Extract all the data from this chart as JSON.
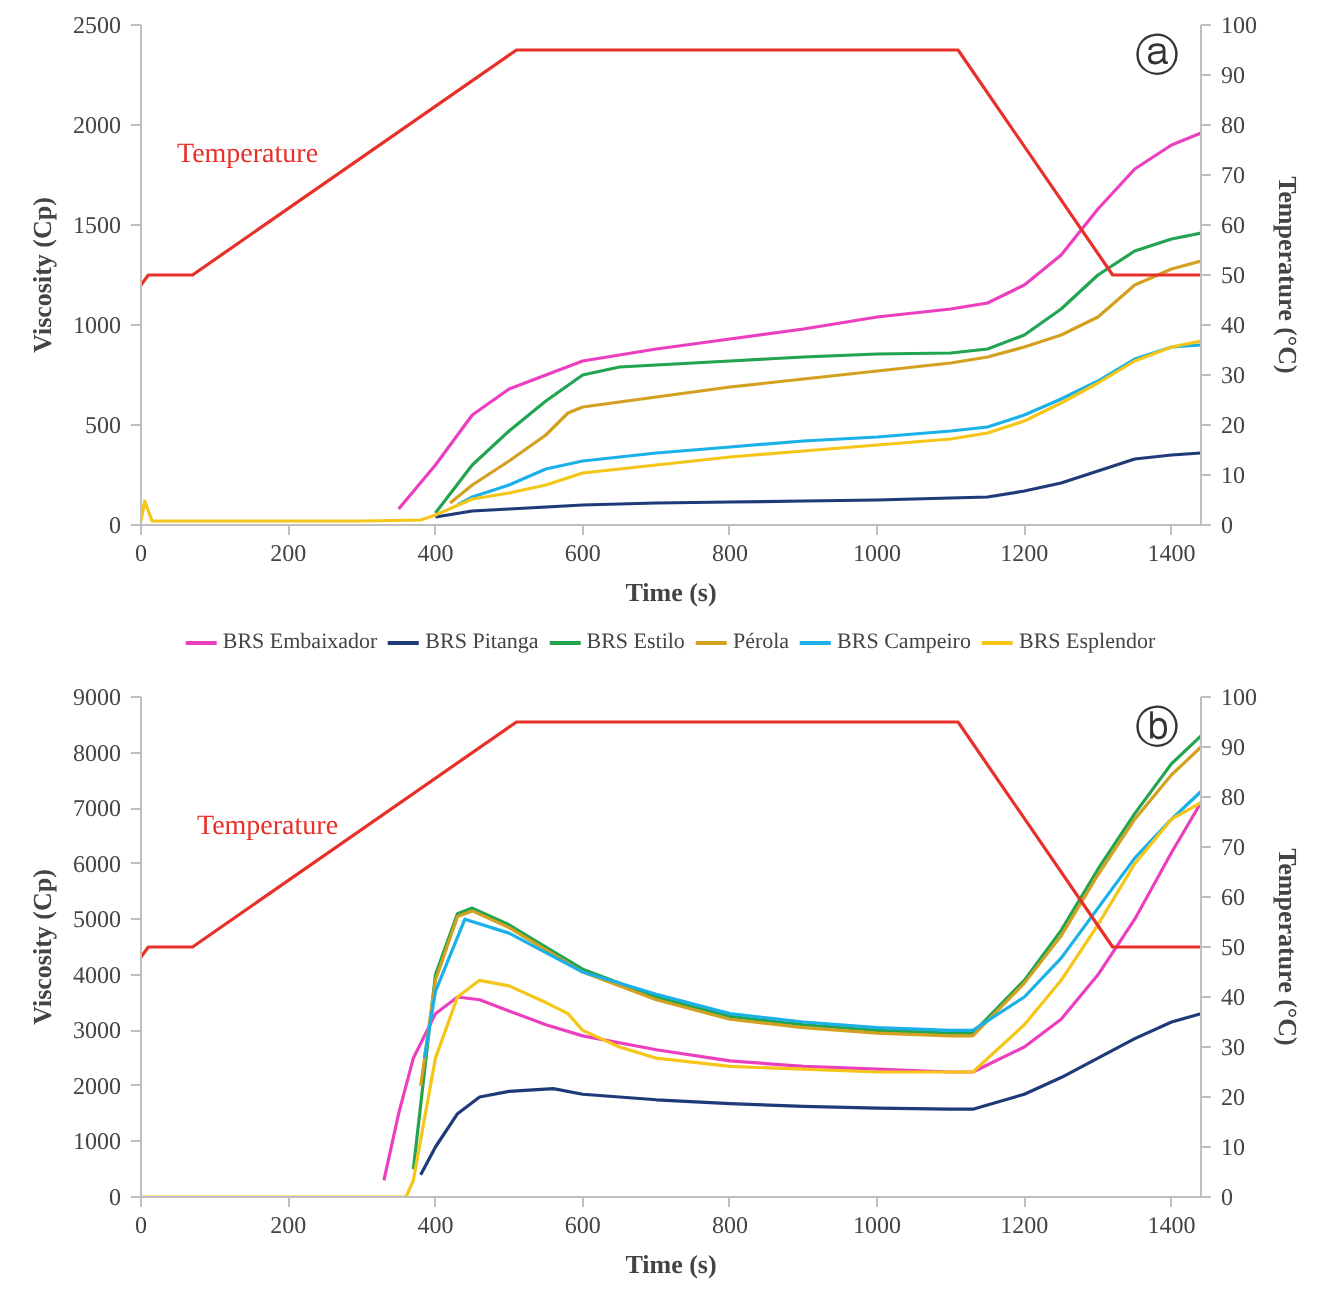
{
  "chart_data": [
    {
      "type": "line",
      "xlabel": "Time (s)",
      "ylabel": "Viscosity (Cp)",
      "y2label": "Temperature (°C)",
      "xlim": [
        0,
        1440
      ],
      "ylim": [
        0,
        2500
      ],
      "y2lim": [
        0,
        100
      ],
      "xticks": [
        0,
        200,
        400,
        600,
        800,
        1000,
        1200,
        1400
      ],
      "yticks": [
        0,
        500,
        1000,
        1500,
        2000,
        2500
      ],
      "y2ticks": [
        0,
        10,
        20,
        30,
        40,
        50,
        60,
        70,
        80,
        90,
        100
      ],
      "grid": false,
      "legend": "bottom",
      "line_style": "solid",
      "marker": "none",
      "annotations": [
        "Temperature",
        "ⓐ"
      ],
      "series": [
        {
          "name": "BRS Embaixador",
          "color": "#ec3fc0",
          "x": [
            350,
            400,
            450,
            500,
            550,
            600,
            700,
            800,
            900,
            1000,
            1100,
            1150,
            1200,
            1250,
            1300,
            1350,
            1400,
            1440
          ],
          "values": [
            80,
            300,
            550,
            680,
            750,
            820,
            880,
            930,
            980,
            1040,
            1080,
            1110,
            1200,
            1350,
            1580,
            1780,
            1900,
            1960
          ]
        },
        {
          "name": "BRS Pitanga",
          "color": "#1f3a78",
          "x": [
            400,
            450,
            500,
            600,
            700,
            800,
            900,
            1000,
            1100,
            1150,
            1200,
            1250,
            1300,
            1350,
            1400,
            1440
          ],
          "values": [
            40,
            70,
            80,
            100,
            110,
            115,
            120,
            125,
            135,
            140,
            170,
            210,
            270,
            330,
            350,
            360
          ]
        },
        {
          "name": "BRS Estilo",
          "color": "#22a450",
          "x": [
            400,
            450,
            500,
            550,
            600,
            650,
            700,
            800,
            900,
            1000,
            1100,
            1150,
            1200,
            1250,
            1300,
            1350,
            1400,
            1440
          ],
          "values": [
            60,
            300,
            470,
            620,
            750,
            790,
            800,
            820,
            840,
            855,
            860,
            880,
            950,
            1080,
            1250,
            1370,
            1430,
            1460
          ]
        },
        {
          "name": "Pérola",
          "color": "#d4a020",
          "x": [
            420,
            450,
            500,
            550,
            580,
            600,
            700,
            800,
            900,
            1000,
            1100,
            1150,
            1200,
            1250,
            1300,
            1350,
            1400,
            1440
          ],
          "values": [
            110,
            200,
            320,
            450,
            560,
            590,
            640,
            690,
            730,
            770,
            810,
            840,
            890,
            950,
            1040,
            1200,
            1280,
            1320
          ]
        },
        {
          "name": "BRS Campeiro",
          "color": "#1ab0e8",
          "x": [
            430,
            450,
            500,
            550,
            600,
            700,
            800,
            900,
            1000,
            1100,
            1150,
            1200,
            1250,
            1300,
            1350,
            1400,
            1440
          ],
          "values": [
            100,
            140,
            200,
            280,
            320,
            360,
            390,
            420,
            440,
            470,
            490,
            550,
            630,
            720,
            830,
            890,
            900
          ]
        },
        {
          "name": "BRS Esplendor",
          "color": "#f5c518",
          "x": [
            0,
            5,
            15,
            100,
            200,
            300,
            380,
            400,
            450,
            500,
            550,
            600,
            700,
            800,
            900,
            1000,
            1100,
            1150,
            1200,
            1250,
            1300,
            1350,
            1400,
            1440
          ],
          "values": [
            20,
            120,
            20,
            20,
            20,
            20,
            25,
            50,
            130,
            160,
            200,
            260,
            300,
            340,
            370,
            400,
            430,
            460,
            520,
            610,
            710,
            820,
            890,
            920
          ]
        },
        {
          "color": "#e8302a",
          "axis": "y2",
          "x": [
            0,
            10,
            70,
            510,
            1110,
            1320,
            1440
          ],
          "values": [
            48,
            50,
            50,
            95,
            95,
            50,
            50
          ]
        }
      ]
    },
    {
      "type": "line",
      "xlabel": "Time (s)",
      "ylabel": "Viscosity (Cp)",
      "y2label": "Temperature (°C)",
      "xlim": [
        0,
        1440
      ],
      "ylim": [
        0,
        9000
      ],
      "y2lim": [
        0,
        100
      ],
      "xticks": [
        0,
        200,
        400,
        600,
        800,
        1000,
        1200,
        1400
      ],
      "yticks": [
        0,
        1000,
        2000,
        3000,
        4000,
        5000,
        6000,
        7000,
        8000,
        9000
      ],
      "y2ticks": [
        0,
        10,
        20,
        30,
        40,
        50,
        60,
        70,
        80,
        90,
        100
      ],
      "grid": false,
      "legend": false,
      "line_style": "solid",
      "marker": "none",
      "annotations": [
        "Temperature",
        "ⓑ"
      ],
      "series": [
        {
          "color": "#ec3fc0",
          "x": [
            330,
            350,
            370,
            400,
            430,
            460,
            500,
            550,
            600,
            700,
            800,
            900,
            1000,
            1100,
            1130,
            1200,
            1250,
            1300,
            1350,
            1400,
            1440
          ],
          "values": [
            300,
            1500,
            2500,
            3300,
            3600,
            3550,
            3350,
            3100,
            2900,
            2650,
            2450,
            2350,
            2300,
            2250,
            2250,
            2700,
            3200,
            4000,
            5000,
            6200,
            7100
          ]
        },
        {
          "color": "#1f3a78",
          "x": [
            380,
            400,
            430,
            460,
            500,
            560,
            600,
            700,
            800,
            900,
            1000,
            1100,
            1130,
            1200,
            1250,
            1300,
            1350,
            1400,
            1440
          ],
          "values": [
            400,
            900,
            1500,
            1800,
            1900,
            1950,
            1850,
            1750,
            1680,
            1630,
            1600,
            1580,
            1580,
            1850,
            2150,
            2500,
            2850,
            3150,
            3300
          ]
        },
        {
          "color": "#22a450",
          "x": [
            370,
            400,
            430,
            450,
            500,
            550,
            600,
            700,
            800,
            900,
            1000,
            1100,
            1130,
            1200,
            1250,
            1300,
            1350,
            1400,
            1440
          ],
          "values": [
            500,
            4000,
            5100,
            5200,
            4900,
            4500,
            4100,
            3600,
            3250,
            3100,
            3000,
            2950,
            2950,
            3900,
            4800,
            5900,
            6900,
            7800,
            8300
          ]
        },
        {
          "color": "#d4a020",
          "x": [
            380,
            400,
            430,
            450,
            500,
            550,
            600,
            700,
            800,
            900,
            1000,
            1100,
            1130,
            1200,
            1250,
            1300,
            1350,
            1400,
            1440
          ],
          "values": [
            2000,
            3900,
            5050,
            5150,
            4850,
            4450,
            4050,
            3550,
            3200,
            3050,
            2950,
            2900,
            2900,
            3850,
            4700,
            5800,
            6800,
            7600,
            8100
          ]
        },
        {
          "color": "#1ab0e8",
          "x": [
            385,
            400,
            440,
            500,
            550,
            600,
            700,
            800,
            900,
            1000,
            1100,
            1130,
            1200,
            1250,
            1300,
            1350,
            1400,
            1440
          ],
          "values": [
            2500,
            3700,
            5000,
            4750,
            4400,
            4050,
            3650,
            3300,
            3150,
            3050,
            3000,
            3000,
            3600,
            4300,
            5200,
            6100,
            6800,
            7300
          ]
        },
        {
          "color": "#f5c518",
          "x": [
            0,
            100,
            200,
            300,
            360,
            370,
            400,
            430,
            460,
            500,
            550,
            580,
            600,
            650,
            700,
            800,
            900,
            1000,
            1100,
            1130,
            1200,
            1250,
            1300,
            1350,
            1400,
            1440
          ],
          "values": [
            0,
            0,
            0,
            0,
            0,
            300,
            2500,
            3600,
            3900,
            3800,
            3500,
            3300,
            3000,
            2700,
            2500,
            2350,
            2300,
            2250,
            2250,
            2250,
            3100,
            3900,
            4900,
            6000,
            6800,
            7100
          ]
        },
        {
          "color": "#e8302a",
          "axis": "y2",
          "x": [
            0,
            10,
            70,
            510,
            1110,
            1320,
            1440
          ],
          "values": [
            48,
            50,
            50,
            95,
            95,
            50,
            50
          ]
        }
      ]
    }
  ]
}
